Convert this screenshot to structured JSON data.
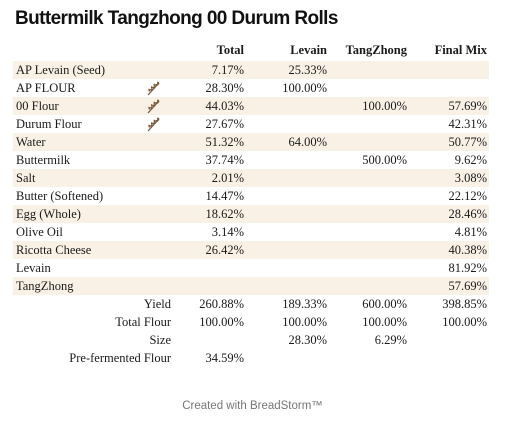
{
  "title": "Buttermilk Tangzhong 00 Durum Rolls",
  "columns": [
    "Total",
    "Levain",
    "TangZhong",
    "Final Mix"
  ],
  "wheat_icon_color": "#7a5a3a",
  "row_alt_color": "#faf1e6",
  "ingredients": [
    {
      "name": "AP Levain (Seed)",
      "icon": "",
      "total": "7.17%",
      "levain": "25.33%",
      "tangzhong": "",
      "final": ""
    },
    {
      "name": "AP FLOUR",
      "icon": "wheat-icon",
      "total": "28.30%",
      "levain": "100.00%",
      "tangzhong": "",
      "final": ""
    },
    {
      "name": "00 Flour",
      "icon": "wheat-icon",
      "total": "44.03%",
      "levain": "",
      "tangzhong": "100.00%",
      "final": "57.69%"
    },
    {
      "name": "Durum Flour",
      "icon": "wheat-icon",
      "total": "27.67%",
      "levain": "",
      "tangzhong": "",
      "final": "42.31%"
    },
    {
      "name": "Water",
      "icon": "",
      "total": "51.32%",
      "levain": "64.00%",
      "tangzhong": "",
      "final": "50.77%"
    },
    {
      "name": "Buttermilk",
      "icon": "",
      "total": "37.74%",
      "levain": "",
      "tangzhong": "500.00%",
      "final": "9.62%"
    },
    {
      "name": "Salt",
      "icon": "",
      "total": "2.01%",
      "levain": "",
      "tangzhong": "",
      "final": "3.08%"
    },
    {
      "name": "Butter (Softened)",
      "icon": "",
      "total": "14.47%",
      "levain": "",
      "tangzhong": "",
      "final": "22.12%"
    },
    {
      "name": "Egg (Whole)",
      "icon": "",
      "total": "18.62%",
      "levain": "",
      "tangzhong": "",
      "final": "28.46%"
    },
    {
      "name": "Olive Oil",
      "icon": "",
      "total": "3.14%",
      "levain": "",
      "tangzhong": "",
      "final": "4.81%"
    },
    {
      "name": "Ricotta Cheese",
      "icon": "",
      "total": "26.42%",
      "levain": "",
      "tangzhong": "",
      "final": "40.38%"
    },
    {
      "name": "Levain",
      "icon": "",
      "total": "",
      "levain": "",
      "tangzhong": "",
      "final": "81.92%"
    },
    {
      "name": "TangZhong",
      "icon": "",
      "total": "",
      "levain": "",
      "tangzhong": "",
      "final": "57.69%"
    }
  ],
  "summary": [
    {
      "label": "Yield",
      "total": "260.88%",
      "levain": "189.33%",
      "tangzhong": "600.00%",
      "final": "398.85%"
    },
    {
      "label": "Total Flour",
      "total": "100.00%",
      "levain": "100.00%",
      "tangzhong": "100.00%",
      "final": "100.00%"
    },
    {
      "label": "Size",
      "total": "",
      "levain": "28.30%",
      "tangzhong": "6.29%",
      "final": ""
    },
    {
      "label": "Pre-fermented Flour",
      "total": "34.59%",
      "levain": "",
      "tangzhong": "",
      "final": ""
    }
  ],
  "footer": "Created with BreadStorm™"
}
